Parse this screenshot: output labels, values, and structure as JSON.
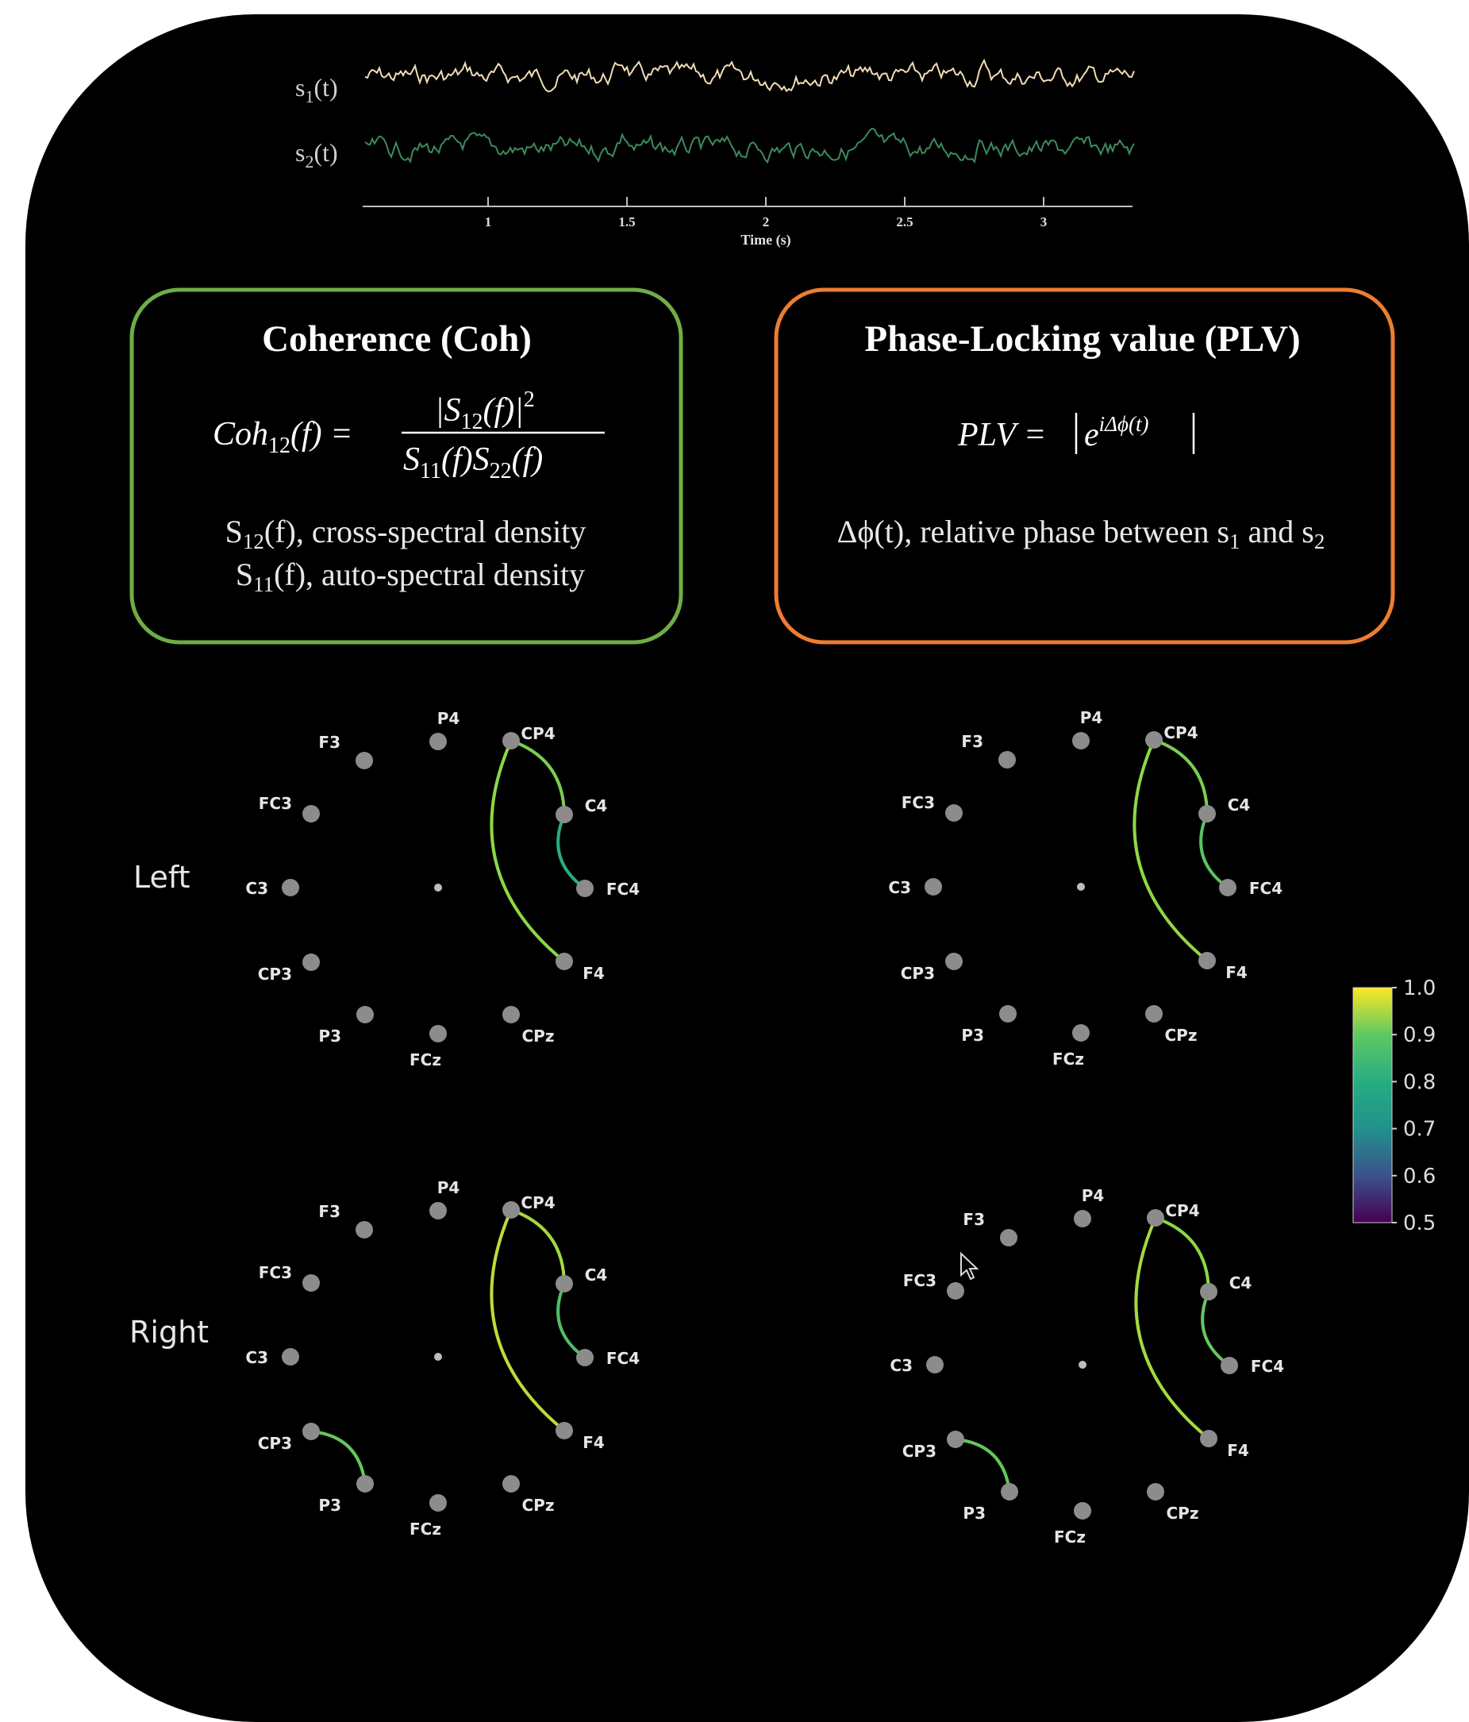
{
  "signals": {
    "s1": {
      "label_base": "s",
      "label_sub": "1",
      "label_tail": "(t)",
      "color": "#f2dcb5"
    },
    "s2": {
      "label_base": "s",
      "label_sub": "2",
      "label_tail": "(t)",
      "color": "#3d8a5e"
    },
    "axis": {
      "ticks": [
        "1",
        "1.5",
        "2",
        "2.5",
        "3"
      ],
      "xlabel": "Time (s)"
    }
  },
  "coherence": {
    "title": "Coherence (Coh)",
    "border_color": "#6fad46",
    "formula": {
      "lhs": "Coh",
      "lhs_sub": "12",
      "lhs_arg": "(f) =",
      "numerator": "|S",
      "numerator_sub": "12",
      "numerator_tail": "(f)|",
      "numerator_sup": "2",
      "denominator_a": "S",
      "denominator_a_sub": "11",
      "denominator_b": "(f)S",
      "denominator_b_sub": "22",
      "denominator_c": "(f)"
    },
    "desc1_base": "S",
    "desc1_sub": "12",
    "desc1_tail": "(f), cross-spectral density",
    "desc2_base": "S",
    "desc2_sub": "11",
    "desc2_tail": "(f), auto-spectral density"
  },
  "plv": {
    "title": "Phase-Locking value (PLV)",
    "border_color": "#ed7d31",
    "formula": {
      "lhs": "PLV = ",
      "base": "e",
      "exponent": "iΔϕ(t)"
    },
    "desc_a": "Δϕ(t), relative phase between s",
    "desc_sub1": "1",
    "desc_b": " and s",
    "desc_sub2": "2"
  },
  "row_labels": [
    "Left",
    "Right"
  ],
  "electrode_names": [
    "F3",
    "P4",
    "CP4",
    "FC3",
    "C4",
    "C3",
    "FC4",
    "CP3",
    "F4",
    "P3",
    "CPz",
    "FCz"
  ],
  "connectivity": {
    "left_coh": [
      {
        "from": "CP4",
        "to": "C4",
        "value": 0.88
      },
      {
        "from": "C4",
        "to": "FC4",
        "value": 0.8
      },
      {
        "from": "CP4",
        "to": "F4",
        "value": 0.9
      }
    ],
    "left_plv": [
      {
        "from": "CP4",
        "to": "C4",
        "value": 0.88
      },
      {
        "from": "C4",
        "to": "FC4",
        "value": 0.85
      },
      {
        "from": "CP4",
        "to": "F4",
        "value": 0.9
      }
    ],
    "right_coh": [
      {
        "from": "CP4",
        "to": "C4",
        "value": 0.92
      },
      {
        "from": "C4",
        "to": "FC4",
        "value": 0.84
      },
      {
        "from": "CP4",
        "to": "F4",
        "value": 0.94
      },
      {
        "from": "CP3",
        "to": "P3",
        "value": 0.86
      }
    ],
    "right_plv": [
      {
        "from": "CP4",
        "to": "C4",
        "value": 0.9
      },
      {
        "from": "C4",
        "to": "FC4",
        "value": 0.86
      },
      {
        "from": "CP4",
        "to": "F4",
        "value": 0.92
      },
      {
        "from": "CP3",
        "to": "P3",
        "value": 0.86
      }
    ]
  },
  "colorbar": {
    "ticks": [
      "1.0",
      "0.9",
      "0.8",
      "0.7",
      "0.6",
      "0.5"
    ],
    "min": 0.5,
    "max": 1.0
  }
}
